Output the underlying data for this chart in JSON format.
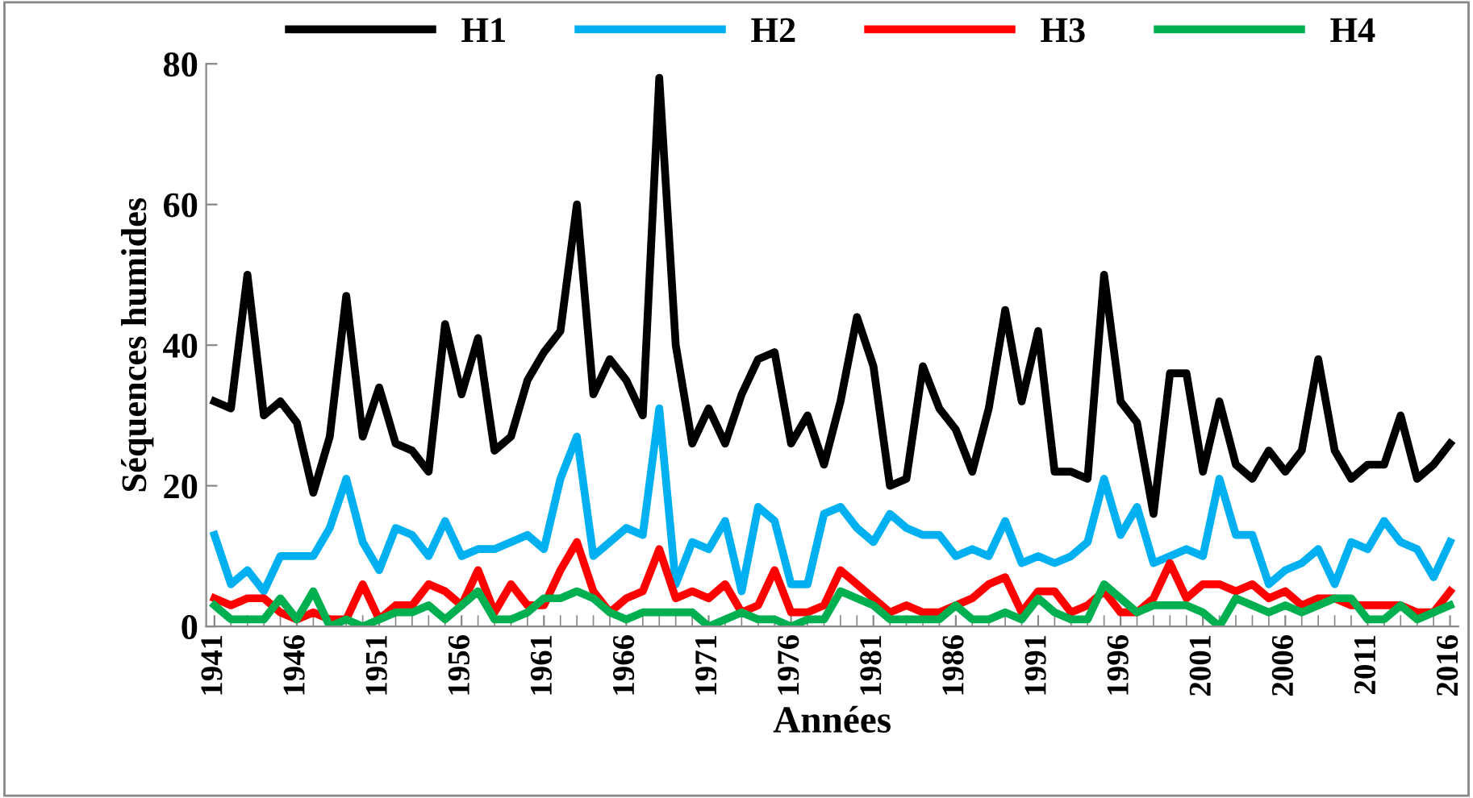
{
  "chart_data": {
    "type": "line",
    "xlabel": "Années",
    "ylabel": "Séquences humides",
    "x": [
      1941,
      1942,
      1943,
      1944,
      1945,
      1946,
      1947,
      1948,
      1949,
      1950,
      1951,
      1952,
      1953,
      1954,
      1955,
      1956,
      1957,
      1958,
      1959,
      1960,
      1961,
      1962,
      1963,
      1964,
      1965,
      1966,
      1967,
      1968,
      1969,
      1970,
      1971,
      1972,
      1973,
      1974,
      1975,
      1976,
      1977,
      1978,
      1979,
      1980,
      1981,
      1982,
      1983,
      1984,
      1985,
      1986,
      1987,
      1988,
      1989,
      1990,
      1991,
      1992,
      1993,
      1994,
      1995,
      1996,
      1997,
      1998,
      1999,
      2000,
      2001,
      2002,
      2003,
      2004,
      2005,
      2006,
      2007,
      2008,
      2009,
      2010,
      2011,
      2012,
      2013,
      2014,
      2015,
      2016
    ],
    "series": [
      {
        "name": "H1",
        "color": "#000000",
        "values": [
          32,
          31,
          50,
          30,
          32,
          29,
          19,
          27,
          47,
          27,
          34,
          26,
          25,
          22,
          43,
          33,
          41,
          25,
          27,
          35,
          39,
          42,
          60,
          33,
          38,
          35,
          30,
          78,
          40,
          26,
          31,
          26,
          33,
          38,
          39,
          26,
          30,
          23,
          32,
          44,
          37,
          20,
          21,
          37,
          31,
          28,
          22,
          31,
          45,
          32,
          42,
          22,
          22,
          21,
          50,
          32,
          29,
          16,
          36,
          36,
          22,
          32,
          23,
          21,
          25,
          22,
          25,
          38,
          25,
          21,
          23,
          23,
          30,
          21,
          23,
          26
        ]
      },
      {
        "name": "H2",
        "color": "#00b0f0",
        "values": [
          13,
          6,
          8,
          5,
          10,
          10,
          10,
          14,
          21,
          12,
          8,
          14,
          13,
          10,
          15,
          10,
          11,
          11,
          12,
          13,
          11,
          21,
          27,
          10,
          12,
          14,
          13,
          31,
          6,
          12,
          11,
          15,
          5,
          17,
          15,
          6,
          6,
          16,
          17,
          14,
          12,
          16,
          14,
          13,
          13,
          10,
          11,
          10,
          15,
          9,
          10,
          9,
          10,
          12,
          21,
          13,
          17,
          9,
          10,
          11,
          10,
          21,
          13,
          13,
          6,
          8,
          9,
          11,
          6,
          12,
          11,
          15,
          12,
          11,
          7,
          12
        ]
      },
      {
        "name": "H3",
        "color": "#ff0000",
        "values": [
          4,
          3,
          4,
          4,
          2,
          1,
          2,
          1,
          1,
          6,
          1,
          3,
          3,
          6,
          5,
          3,
          8,
          2,
          6,
          3,
          3,
          8,
          12,
          5,
          2,
          4,
          5,
          11,
          4,
          5,
          4,
          6,
          2,
          3,
          8,
          2,
          2,
          3,
          8,
          6,
          4,
          2,
          3,
          2,
          2,
          3,
          4,
          6,
          7,
          2,
          5,
          5,
          2,
          3,
          5,
          2,
          2,
          4,
          9,
          4,
          6,
          6,
          5,
          6,
          4,
          5,
          3,
          4,
          4,
          3,
          3,
          3,
          3,
          2,
          2,
          5
        ]
      },
      {
        "name": "H4",
        "color": "#00b050",
        "values": [
          3,
          1,
          1,
          1,
          4,
          1,
          5,
          0,
          1,
          0,
          1,
          2,
          2,
          3,
          1,
          3,
          5,
          1,
          1,
          2,
          4,
          4,
          5,
          4,
          2,
          1,
          2,
          2,
          2,
          2,
          0,
          1,
          2,
          1,
          1,
          0,
          1,
          1,
          5,
          4,
          3,
          1,
          1,
          1,
          1,
          3,
          1,
          1,
          2,
          1,
          4,
          2,
          1,
          1,
          6,
          4,
          2,
          3,
          3,
          3,
          2,
          0,
          4,
          3,
          2,
          3,
          2,
          3,
          4,
          4,
          1,
          1,
          3,
          1,
          2,
          3
        ]
      }
    ],
    "xlim": [
      1940.5,
      2016.5
    ],
    "xticks": [
      1941,
      1946,
      1951,
      1956,
      1961,
      1966,
      1971,
      1976,
      1981,
      1986,
      1991,
      1996,
      2001,
      2006,
      2011,
      2016
    ],
    "ylim": [
      0,
      80
    ],
    "yticks": [
      0,
      20,
      40,
      60,
      80
    ],
    "grid": false,
    "legend": "top",
    "marker": "none",
    "line_style": "solid"
  }
}
